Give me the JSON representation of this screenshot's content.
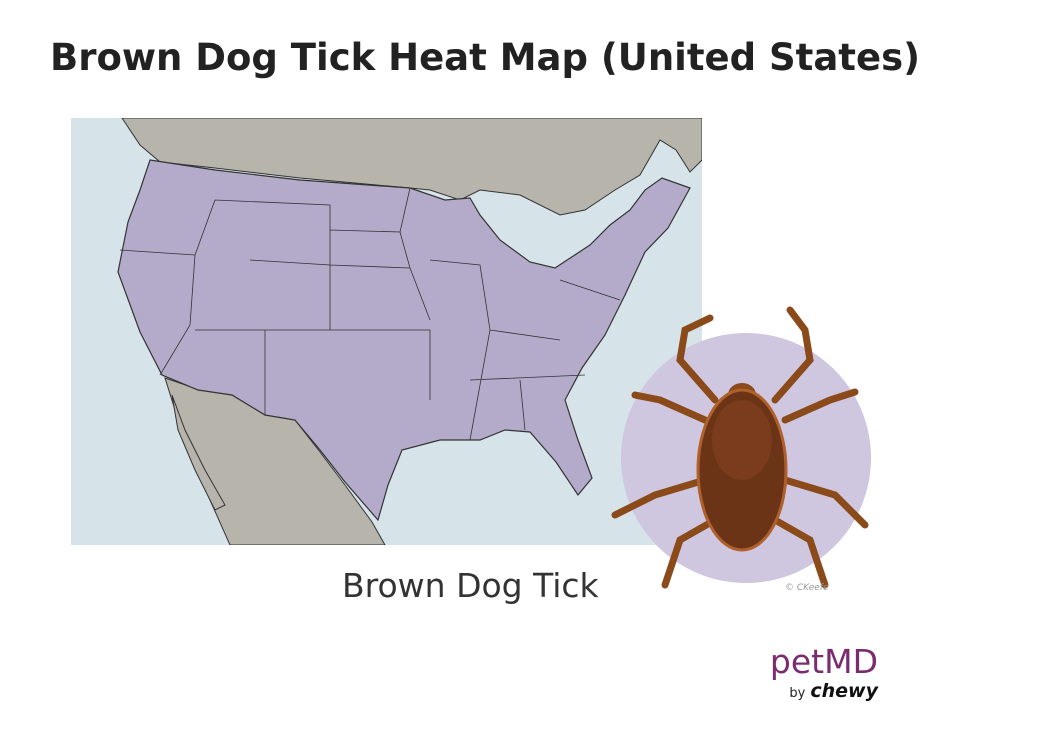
{
  "title": "Brown Dog Tick Heat Map (United States)",
  "caption": "Brown Dog Tick",
  "logo": {
    "brand": "petMD",
    "by": "by",
    "parent": "chewy"
  },
  "map": {
    "region": "Contiguous United States",
    "colors": {
      "water": "#d6e4e9",
      "neighbor_land": "#b6b4ab",
      "us_states": "#b3abc9",
      "tick_circle": "#cfc6df",
      "logo": "#7b2c6f"
    }
  },
  "illustration": {
    "subject": "brown-dog-tick",
    "signature": "© CKeefe"
  }
}
